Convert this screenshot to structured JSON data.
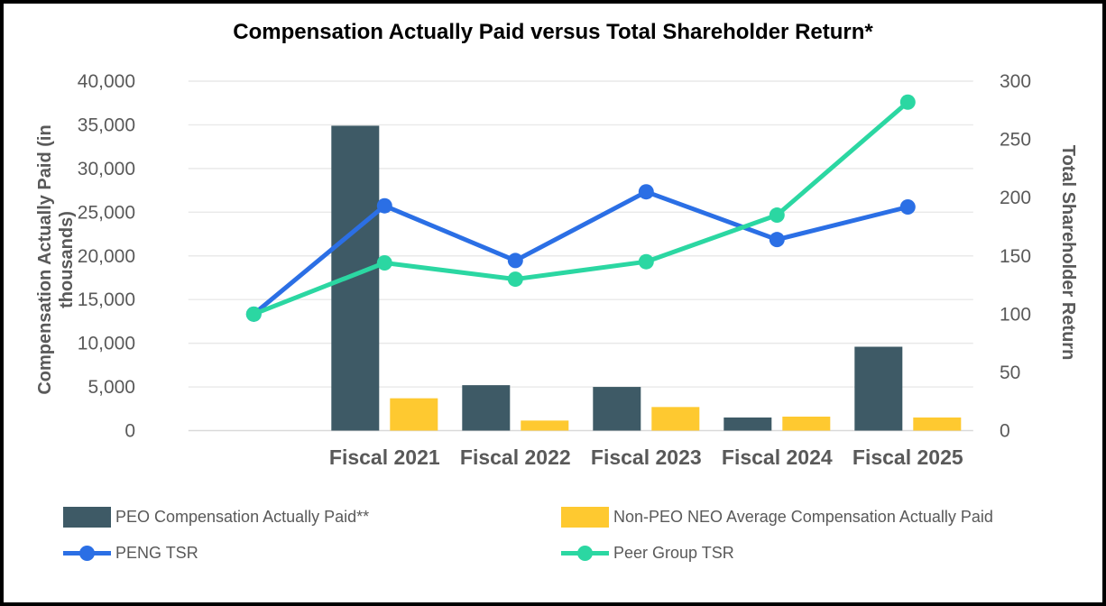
{
  "title": "Compensation Actually Paid versus Total Shareholder Return*",
  "chart_data": {
    "type": "combo-bar-line",
    "categories": [
      "",
      "Fiscal 2021",
      "Fiscal 2022",
      "Fiscal 2023",
      "Fiscal 2024",
      "Fiscal 2025"
    ],
    "bar_series": [
      {
        "name": "PEO Compensation Actually Paid**",
        "color": "#3E5A66",
        "axis": "left",
        "values": [
          null,
          34900,
          5200,
          5000,
          1500,
          9600
        ]
      },
      {
        "name": "Non-PEO NEO Average Compensation Actually Paid",
        "color": "#FEC930",
        "axis": "left",
        "values": [
          null,
          3700,
          1150,
          2700,
          1600,
          1500
        ]
      }
    ],
    "line_series": [
      {
        "name": "PENG TSR",
        "color": "#2B6FE5",
        "axis": "right",
        "values": [
          100,
          193,
          146,
          205,
          164,
          192
        ]
      },
      {
        "name": "Peer Group TSR",
        "color": "#2BD7A2",
        "axis": "right",
        "values": [
          100,
          144,
          130,
          145,
          185,
          282
        ]
      }
    ],
    "left_axis": {
      "title": "Compensation Actually Paid (in thousands)",
      "title_lines": [
        "Compensation Actually Paid (in",
        "thousands)"
      ],
      "min": 0,
      "max": 40000,
      "ticks": [
        {
          "label": "0",
          "value": 0
        },
        {
          "label": "5,000",
          "value": 5000
        },
        {
          "label": "10,000",
          "value": 10000
        },
        {
          "label": "15,000",
          "value": 15000
        },
        {
          "label": "20,000",
          "value": 20000
        },
        {
          "label": "25,000",
          "value": 25000
        },
        {
          "label": "30,000",
          "value": 30000
        },
        {
          "label": "35,000",
          "value": 35000
        },
        {
          "label": "40,000",
          "value": 40000
        }
      ]
    },
    "right_axis": {
      "title": "Total Shareholder Return",
      "min": 0,
      "max": 300,
      "ticks": [
        {
          "label": "0",
          "value": 0
        },
        {
          "label": "50",
          "value": 50
        },
        {
          "label": "100",
          "value": 100
        },
        {
          "label": "150",
          "value": 150
        },
        {
          "label": "200",
          "value": 200
        },
        {
          "label": "250",
          "value": 250
        },
        {
          "label": "300",
          "value": 300
        }
      ]
    },
    "grid": {
      "on": true,
      "color": "#E9E9E9",
      "baseline_color": "#D9D9D9"
    }
  },
  "legend": {
    "items": [
      {
        "label": "PEO Compensation Actually Paid**",
        "type": "bar",
        "color": "#3E5A66"
      },
      {
        "label": "Non-PEO NEO Average Compensation Actually Paid",
        "type": "bar",
        "color": "#FEC930"
      },
      {
        "label": "PENG TSR",
        "type": "line",
        "color": "#2B6FE5"
      },
      {
        "label": "Peer Group TSR",
        "type": "line",
        "color": "#2BD7A2"
      }
    ],
    "position": "bottom"
  },
  "text_colors": {
    "title": "#000000",
    "axis_text": "#595959"
  }
}
